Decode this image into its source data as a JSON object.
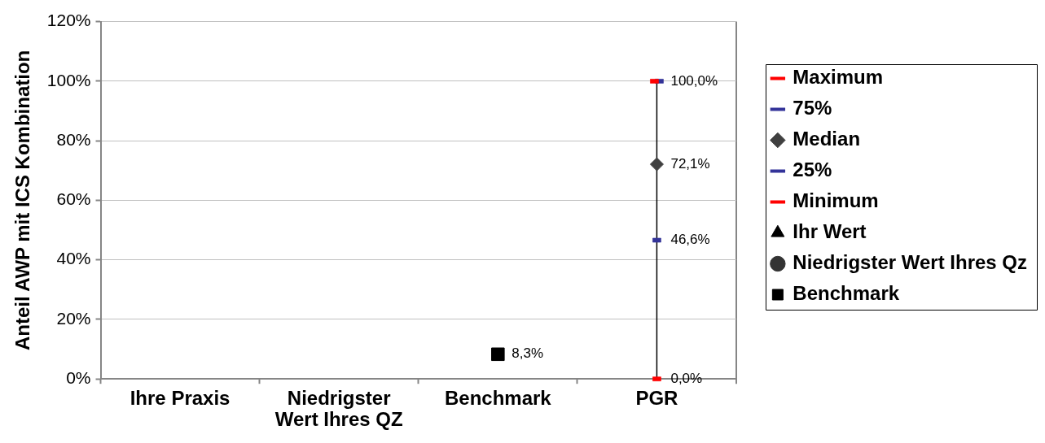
{
  "chart_data": {
    "type": "scatter",
    "ylabel": "Anteil AWP mit ICS Kombination",
    "categories": [
      "Ihre Praxis",
      "Niedrigster Wert Ihres QZ",
      "Benchmark",
      "PGR"
    ],
    "ylim": [
      0,
      120
    ],
    "yticks": [
      {
        "value": 0,
        "label": "0%"
      },
      {
        "value": 20,
        "label": "20%"
      },
      {
        "value": 40,
        "label": "40%"
      },
      {
        "value": 60,
        "label": "60%"
      },
      {
        "value": 80,
        "label": "80%"
      },
      {
        "value": 100,
        "label": "100%"
      },
      {
        "value": 120,
        "label": "120%"
      }
    ],
    "grid": "y",
    "legend": "right",
    "series": [
      {
        "name": "Maximum",
        "color": "#ff0000",
        "values": [
          null,
          null,
          null,
          100
        ],
        "value_labels": [
          null,
          null,
          null,
          "100,0%"
        ]
      },
      {
        "name": "75%",
        "color": "#333399",
        "values": [
          null,
          null,
          null,
          100
        ]
      },
      {
        "name": "Median",
        "color": "#404040",
        "marker": "diamond",
        "values": [
          null,
          null,
          null,
          72.1
        ],
        "value_labels": [
          null,
          null,
          null,
          "72,1%"
        ]
      },
      {
        "name": "25%",
        "color": "#333399",
        "values": [
          null,
          null,
          null,
          46.6
        ],
        "value_labels": [
          null,
          null,
          null,
          "46,6%"
        ]
      },
      {
        "name": "Minimum",
        "color": "#ff0000",
        "values": [
          null,
          null,
          null,
          0
        ],
        "value_labels": [
          null,
          null,
          null,
          "0,0%"
        ]
      },
      {
        "name": "Ihr Wert",
        "color": "#000000",
        "marker": "triangle",
        "values": [
          null,
          null,
          null,
          null
        ]
      },
      {
        "name": "Niedrigster Wert Ihres Qz",
        "color": "#333333",
        "marker": "circle",
        "values": [
          null,
          null,
          null,
          null
        ]
      },
      {
        "name": "Benchmark",
        "color": "#000000",
        "marker": "square",
        "values": [
          null,
          null,
          8.3,
          null
        ],
        "value_labels": [
          null,
          null,
          "8,3%",
          null
        ]
      },
      {
        "type": "line",
        "color": "#000000",
        "marker": "none",
        "x": [
          "PGR",
          "PGR"
        ],
        "values": [
          0,
          100
        ]
      }
    ]
  }
}
